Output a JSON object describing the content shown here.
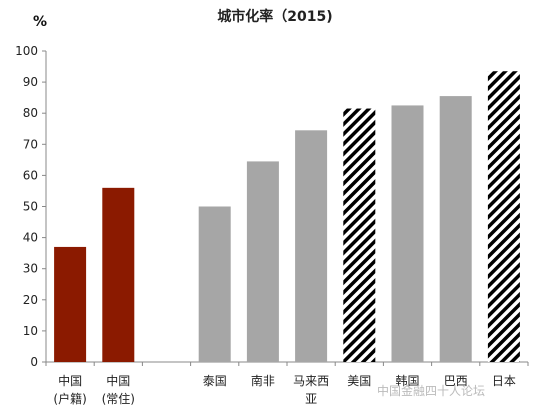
{
  "chart_data": {
    "type": "bar",
    "title": "城市化率（2015)",
    "ylabel": "%",
    "ylim": [
      0,
      100
    ],
    "ytick_step": 10,
    "grid": false,
    "categories": [
      [
        "中国",
        "(户籍)"
      ],
      [
        "中国",
        "(常住)"
      ],
      [
        ""
      ],
      [
        "泰国"
      ],
      [
        "南非"
      ],
      [
        "马来西",
        "亚"
      ],
      [
        "美国"
      ],
      [
        "韩国"
      ],
      [
        "巴西"
      ],
      [
        "日本"
      ]
    ],
    "values": [
      37,
      56,
      null,
      50,
      64.5,
      74.5,
      81.5,
      82.5,
      85.5,
      93.5
    ],
    "bar_styles": [
      "red",
      "red",
      "none",
      "gray",
      "gray",
      "gray",
      "hatch",
      "gray",
      "gray",
      "hatch"
    ],
    "colors": {
      "red": "#8b1a00",
      "gray": "#a6a6a6",
      "hatch": "#000000"
    }
  },
  "watermark": "中国金融四十人论坛"
}
